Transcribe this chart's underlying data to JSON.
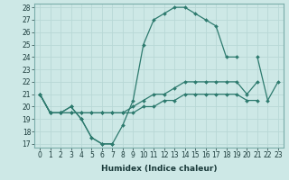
{
  "xlabel": "Humidex (Indice chaleur)",
  "x": [
    0,
    1,
    2,
    3,
    4,
    5,
    6,
    7,
    8,
    9,
    10,
    11,
    12,
    13,
    14,
    15,
    16,
    17,
    18,
    19,
    20,
    21,
    22,
    23
  ],
  "line1": [
    21,
    19.5,
    19.5,
    20,
    19,
    17.5,
    17,
    17,
    18.5,
    20.5,
    25,
    27,
    27.5,
    28,
    28,
    27.5,
    27,
    26.5,
    24,
    24,
    null,
    null,
    null,
    null
  ],
  "line2_a": {
    "x": [
      0,
      1,
      2,
      3,
      4,
      5,
      6,
      7
    ],
    "y": [
      21,
      19.5,
      19.5,
      20,
      19,
      17.5,
      17,
      17
    ]
  },
  "line2_b": {
    "x": [
      21,
      22,
      23
    ],
    "y": [
      24,
      20.5,
      22
    ]
  },
  "line3": [
    21,
    19.5,
    19.5,
    19.5,
    19.5,
    19.5,
    19.5,
    19.5,
    19.5,
    20,
    20.5,
    21,
    21,
    21.5,
    22,
    22,
    22,
    22,
    22,
    22,
    21,
    22,
    null,
    null
  ],
  "line4": [
    21,
    19.5,
    19.5,
    19.5,
    19.5,
    19.5,
    19.5,
    19.5,
    19.5,
    19.5,
    20,
    20,
    20.5,
    20.5,
    21,
    21,
    21,
    21,
    21,
    21,
    20.5,
    20.5,
    null,
    null
  ],
  "background_color": "#cde8e6",
  "grid_color": "#b8d8d6",
  "line_color": "#2d7a6e",
  "ylim_min": 17,
  "ylim_max": 28,
  "yticks": [
    17,
    18,
    19,
    20,
    21,
    22,
    23,
    24,
    25,
    26,
    27,
    28
  ],
  "xticks": [
    0,
    1,
    2,
    3,
    4,
    5,
    6,
    7,
    8,
    9,
    10,
    11,
    12,
    13,
    14,
    15,
    16,
    17,
    18,
    19,
    20,
    21,
    22,
    23
  ],
  "xlabel_fontsize": 6.5,
  "tick_fontsize": 5.5
}
